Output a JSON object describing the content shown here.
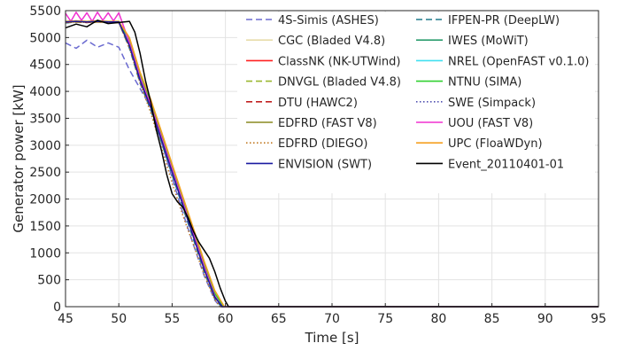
{
  "chart_data": {
    "type": "line",
    "xlabel": "Time [s]",
    "ylabel": "Generator power [kW]",
    "xlim": [
      45,
      95
    ],
    "ylim": [
      0,
      5500
    ],
    "xticks": [
      "45",
      "50",
      "55",
      "60",
      "65",
      "70",
      "75",
      "80",
      "85",
      "90",
      "95"
    ],
    "yticks": [
      "0",
      "500",
      "1000",
      "1500",
      "2000",
      "2500",
      "3000",
      "3500",
      "4000",
      "4500",
      "5000",
      "5500"
    ],
    "grid": true,
    "legend_position": "top-right",
    "series": [
      {
        "name": "4S-Simis (ASHES)",
        "color": "#6a6ad0",
        "dash": "dashed",
        "x": [
          45,
          46,
          47,
          48,
          49,
          50,
          51,
          52,
          53,
          54,
          55,
          56,
          57,
          58,
          59,
          59.5,
          60,
          95
        ],
        "y": [
          4900,
          4800,
          4950,
          4820,
          4900,
          4820,
          4400,
          4050,
          3700,
          3050,
          2400,
          1750,
          1150,
          580,
          120,
          0,
          0,
          0
        ]
      },
      {
        "name": "IFPEN-PR (DeepLW)",
        "color": "#1f7a8c",
        "dash": "dashed",
        "x": [
          45,
          46,
          47,
          48,
          49,
          50,
          51,
          52,
          53,
          54,
          55,
          56,
          57,
          58,
          59,
          59.6,
          60,
          95
        ],
        "y": [
          5270,
          5290,
          5280,
          5300,
          5290,
          5280,
          4800,
          4150,
          3650,
          3050,
          2450,
          1850,
          1250,
          650,
          150,
          0,
          0,
          0
        ]
      },
      {
        "name": "CGC (Bladed V4.8)",
        "color": "#e8dcaa",
        "dash": "solid",
        "x": [
          45,
          46,
          47,
          48,
          49,
          50,
          51,
          52,
          53,
          54,
          55,
          56,
          57,
          58,
          59,
          59.7,
          60,
          95
        ],
        "y": [
          5280,
          5290,
          5280,
          5290,
          5280,
          5280,
          4850,
          4200,
          3700,
          3100,
          2500,
          1900,
          1300,
          700,
          180,
          0,
          0,
          0
        ]
      },
      {
        "name": "IWES (MoWiT)",
        "color": "#2a9d6e",
        "dash": "solid",
        "x": [
          45,
          46,
          47,
          48,
          49,
          50,
          51,
          52,
          53,
          54,
          55,
          56,
          57,
          58,
          59,
          59.7,
          60,
          95
        ],
        "y": [
          5290,
          5300,
          5290,
          5300,
          5290,
          5290,
          4900,
          4250,
          3750,
          3150,
          2550,
          1950,
          1350,
          750,
          200,
          0,
          0,
          0
        ]
      },
      {
        "name": "ClassNK (NK-UTWind)",
        "color": "#ff2020",
        "dash": "solid",
        "x": [
          45,
          46,
          47,
          48,
          49,
          50,
          51,
          52,
          53,
          54,
          55,
          56,
          57,
          58,
          59,
          59.7,
          60,
          95
        ],
        "y": [
          5290,
          5290,
          5290,
          5290,
          5290,
          5290,
          4850,
          4200,
          3700,
          3100,
          2500,
          1900,
          1300,
          700,
          180,
          0,
          0,
          0
        ]
      },
      {
        "name": "NREL (OpenFAST v0.1.0)",
        "color": "#40e0f0",
        "dash": "solid",
        "x": [
          45,
          46,
          47,
          48,
          49,
          50,
          51,
          52,
          53,
          54,
          55,
          56,
          57,
          58,
          59,
          59.7,
          60,
          95
        ],
        "y": [
          5300,
          5310,
          5300,
          5310,
          5300,
          5300,
          4900,
          4250,
          3750,
          3150,
          2550,
          1950,
          1350,
          750,
          200,
          0,
          0,
          0
        ]
      },
      {
        "name": "DNVGL (Bladed V4.8)",
        "color": "#9ab830",
        "dash": "dashed",
        "x": [
          45,
          46,
          47,
          48,
          49,
          50,
          51,
          52,
          53,
          54,
          55,
          56,
          57,
          58,
          59,
          59.7,
          60,
          95
        ],
        "y": [
          5280,
          5290,
          5280,
          5290,
          5280,
          5280,
          4850,
          4200,
          3700,
          3100,
          2500,
          1900,
          1300,
          700,
          180,
          0,
          0,
          0
        ]
      },
      {
        "name": "NTNU (SIMA)",
        "color": "#30d030",
        "dash": "solid",
        "x": [
          45,
          46,
          47,
          48,
          49,
          50,
          51,
          52,
          53,
          54,
          55,
          56,
          57,
          58,
          59,
          59.8,
          60,
          95
        ],
        "y": [
          5290,
          5300,
          5290,
          5300,
          5290,
          5290,
          4950,
          4300,
          3800,
          3200,
          2600,
          2000,
          1400,
          800,
          250,
          0,
          0,
          0
        ]
      },
      {
        "name": "DTU (HAWC2)",
        "color": "#c02020",
        "dash": "dashed",
        "x": [
          45,
          46,
          47,
          48,
          49,
          50,
          51,
          52,
          53,
          54,
          55,
          56,
          57,
          58,
          59,
          59.7,
          60,
          95
        ],
        "y": [
          5280,
          5290,
          5280,
          5290,
          5280,
          5280,
          4850,
          4200,
          3700,
          3100,
          2500,
          1900,
          1300,
          700,
          180,
          0,
          0,
          0
        ]
      },
      {
        "name": "SWE (Simpack)",
        "color": "#5050b0",
        "dash": "dotted",
        "x": [
          45,
          46,
          47,
          48,
          49,
          50,
          51,
          52,
          53,
          54,
          55,
          56,
          57,
          58,
          59,
          59.7,
          60,
          95
        ],
        "y": [
          5290,
          5300,
          5290,
          5300,
          5290,
          5290,
          4850,
          4200,
          3700,
          3100,
          2500,
          1900,
          1300,
          700,
          180,
          0,
          0,
          0
        ]
      },
      {
        "name": "EDFRD (FAST V8)",
        "color": "#8a8a20",
        "dash": "solid",
        "x": [
          45,
          46,
          47,
          48,
          49,
          50,
          51,
          52,
          53,
          54,
          55,
          56,
          57,
          58,
          59,
          59.7,
          60,
          95
        ],
        "y": [
          5290,
          5290,
          5290,
          5290,
          5290,
          5290,
          4850,
          4200,
          3700,
          3100,
          2500,
          1900,
          1300,
          700,
          180,
          0,
          0,
          0
        ]
      },
      {
        "name": "UOU (FAST V8)",
        "color": "#f030d0",
        "dash": "solid",
        "x": [
          45,
          45.5,
          46,
          46.5,
          47,
          47.5,
          48,
          48.5,
          49,
          49.5,
          50,
          51,
          52,
          53,
          54,
          55,
          56,
          57,
          58,
          59,
          59.7,
          60,
          95
        ],
        "y": [
          5450,
          5300,
          5470,
          5320,
          5460,
          5300,
          5470,
          5320,
          5460,
          5310,
          5460,
          4900,
          4250,
          3750,
          3150,
          2550,
          1950,
          1350,
          750,
          200,
          0,
          0,
          0
        ]
      },
      {
        "name": "EDFRD (DIEGO)",
        "color": "#c07820",
        "dash": "dotted",
        "x": [
          45,
          46,
          47,
          48,
          49,
          50,
          51,
          52,
          53,
          54,
          55,
          56,
          57,
          58,
          59,
          59.5,
          60,
          95
        ],
        "y": [
          5280,
          5290,
          5280,
          5290,
          5280,
          5280,
          4800,
          4150,
          3600,
          2950,
          2300,
          1700,
          1150,
          600,
          130,
          0,
          0,
          0
        ]
      },
      {
        "name": "UPC (FloaWDyn)",
        "color": "#f5a020",
        "dash": "solid",
        "x": [
          45,
          46,
          47,
          48,
          49,
          50,
          51,
          52,
          53,
          54,
          55,
          56,
          57,
          58,
          59,
          59.9,
          60,
          95
        ],
        "y": [
          5300,
          5310,
          5300,
          5310,
          5300,
          5300,
          5000,
          4350,
          3850,
          3250,
          2650,
          2050,
          1450,
          850,
          300,
          0,
          0,
          0
        ]
      },
      {
        "name": "ENVISION (SWT)",
        "color": "#1a1aa0",
        "dash": "solid",
        "x": [
          45,
          46,
          47,
          48,
          49,
          50,
          51,
          52,
          53,
          54,
          55,
          56,
          57,
          58,
          59,
          59.7,
          60,
          95
        ],
        "y": [
          5290,
          5300,
          5290,
          5300,
          5290,
          5290,
          4850,
          4200,
          3700,
          3100,
          2500,
          1900,
          1300,
          700,
          180,
          0,
          0,
          0
        ]
      },
      {
        "name": "Event_20110401-01",
        "color": "#000000",
        "dash": "solid",
        "x": [
          45,
          46,
          47,
          48,
          49,
          50,
          51,
          51.5,
          52,
          52.5,
          53,
          53.5,
          54,
          54.5,
          55,
          55.5,
          56,
          56.5,
          57,
          57.5,
          58,
          58.5,
          59,
          59.5,
          60,
          60.3,
          95
        ],
        "y": [
          5180,
          5250,
          5200,
          5320,
          5260,
          5280,
          5300,
          5100,
          4700,
          4200,
          3800,
          3300,
          2900,
          2450,
          2100,
          1950,
          1850,
          1650,
          1400,
          1200,
          1050,
          900,
          650,
          350,
          100,
          0,
          0
        ]
      }
    ]
  }
}
